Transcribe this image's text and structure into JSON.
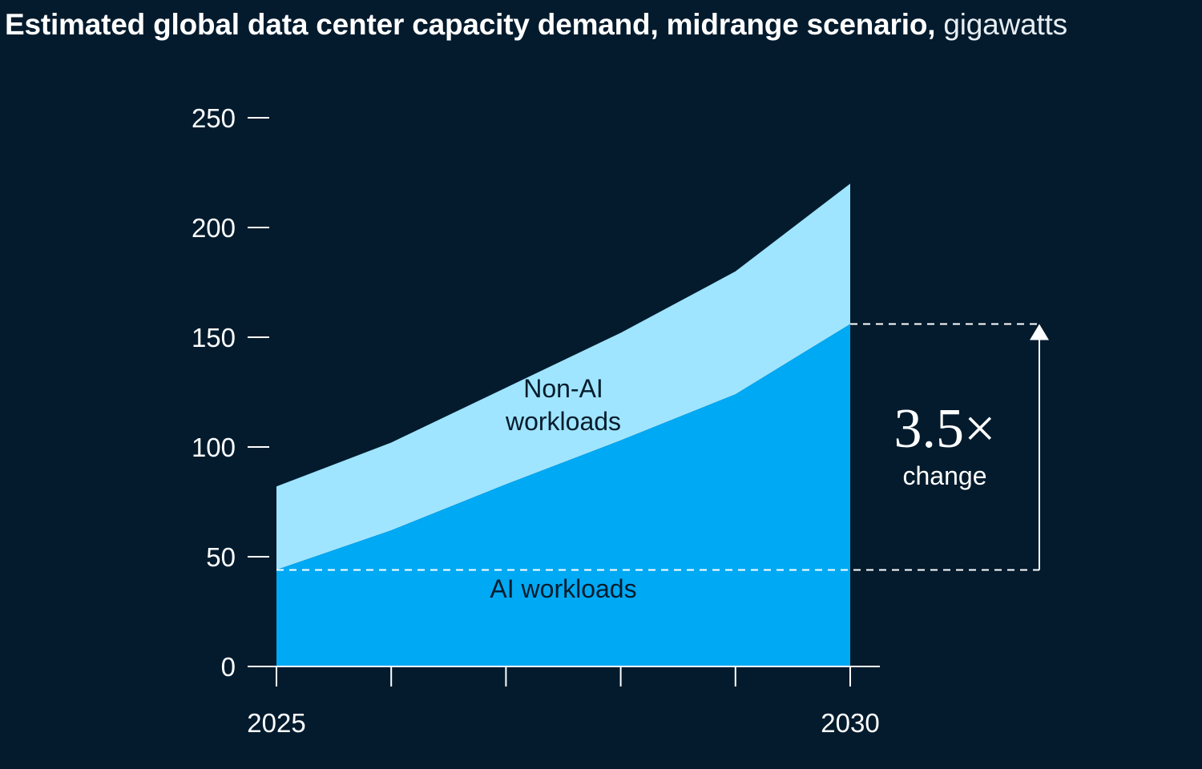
{
  "title": {
    "main": "Estimated global data center capacity demand, midrange scenario,",
    "unit": "gigawatts"
  },
  "colors": {
    "background": "#031b2d",
    "ai_workloads": "#00a9f4",
    "non_ai_workloads": "#9fe5ff",
    "axis": "#ffffff"
  },
  "chart_data": {
    "type": "area",
    "stacked": true,
    "x": [
      2025,
      2026,
      2027,
      2028,
      2029,
      2030
    ],
    "x_tick_labels": [
      "2025",
      "",
      "",
      "",
      "",
      "2030"
    ],
    "ylim": [
      0,
      250
    ],
    "y_ticks": [
      0,
      50,
      100,
      150,
      200,
      250
    ],
    "y_tick_labels": [
      "0",
      "50",
      "100",
      "150",
      "200",
      "250"
    ],
    "series": [
      {
        "name": "AI workloads",
        "label_lines": [
          "AI workloads"
        ],
        "values": [
          44,
          62,
          83,
          103,
          124,
          156
        ]
      },
      {
        "name": "Non-AI workloads",
        "label_lines": [
          "Non-AI",
          "workloads"
        ],
        "values": [
          38,
          40,
          44,
          49,
          56,
          64
        ]
      }
    ],
    "totals": [
      82,
      102,
      127,
      152,
      180,
      220
    ],
    "annotation": {
      "value": "3.5×",
      "label": "change",
      "from": 44,
      "to": 156
    }
  }
}
